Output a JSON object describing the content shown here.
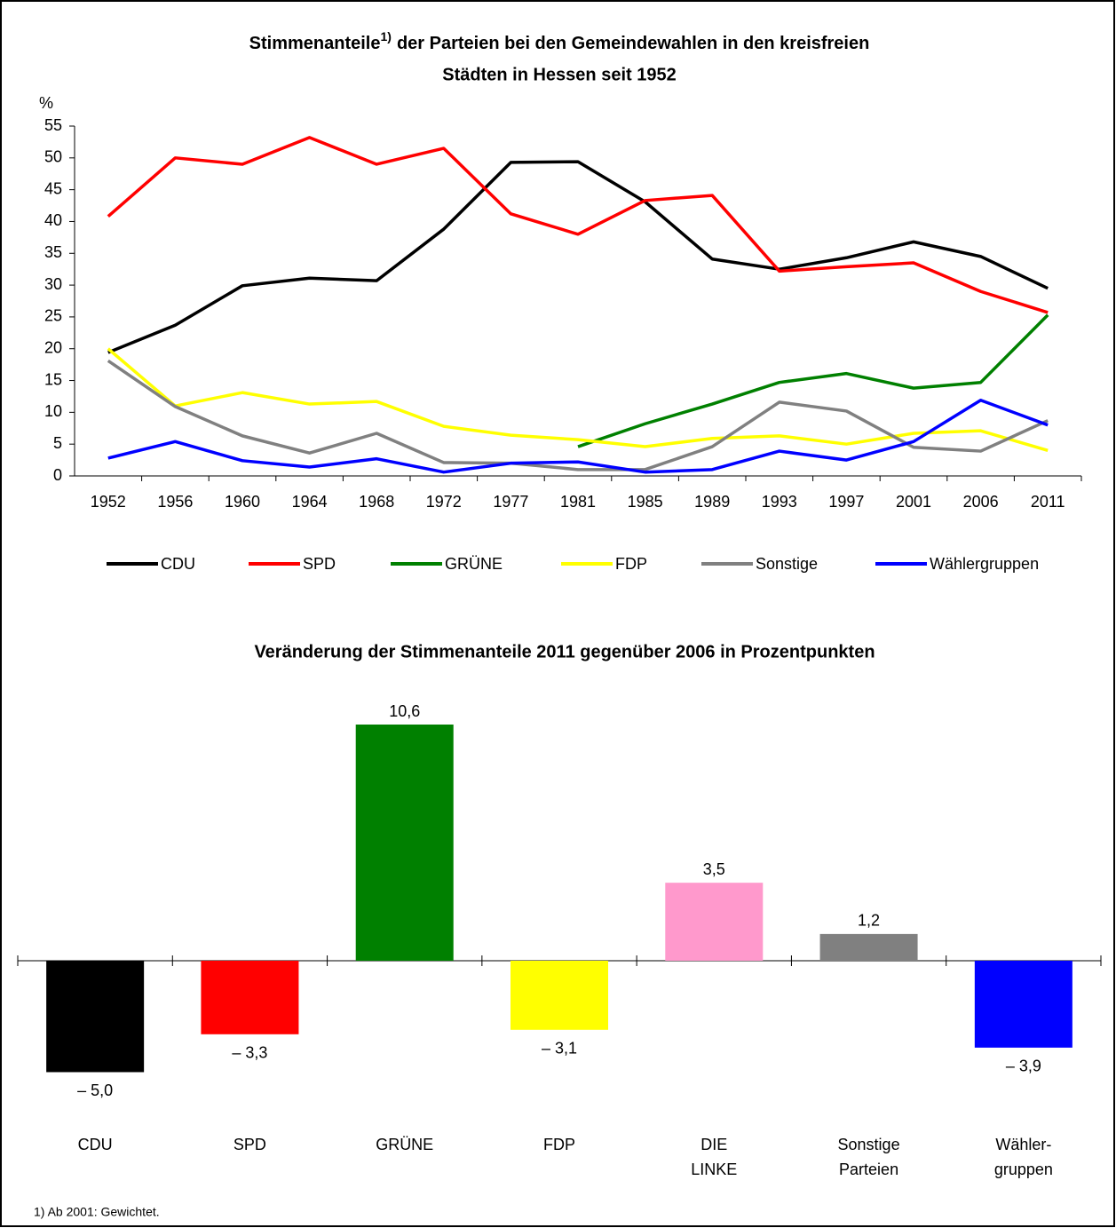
{
  "chart_data": [
    {
      "type": "line",
      "title": "Stimmenanteile",
      "title_note": "1)",
      "title_rest": "der Parteien bei den Gemeindewahlen in den kreisfreien",
      "title_line2": "Städten in Hessen seit 1952",
      "ylabel": "%",
      "categories": [
        "1952",
        "1956",
        "1960",
        "1964",
        "1968",
        "1972",
        "1977",
        "1981",
        "1985",
        "1989",
        "1993",
        "1997",
        "2001",
        "2006",
        "2011"
      ],
      "ylim": [
        0,
        55
      ],
      "yticks": [
        0,
        5,
        10,
        15,
        20,
        25,
        30,
        35,
        40,
        45,
        50,
        55
      ],
      "series": [
        {
          "name": "CDU",
          "color": "#000000",
          "values": [
            19.4,
            23.7,
            29.9,
            31.1,
            30.7,
            38.8,
            49.3,
            49.4,
            43.1,
            34.1,
            32.5,
            34.3,
            36.8,
            34.5,
            29.5
          ]
        },
        {
          "name": "SPD",
          "color": "#ff0000",
          "values": [
            40.8,
            50.0,
            49.0,
            53.2,
            49.0,
            51.5,
            41.2,
            38.0,
            43.3,
            44.1,
            32.2,
            32.9,
            33.5,
            29.0,
            25.7
          ]
        },
        {
          "name": "GRÜNE",
          "color": "#008000",
          "values": [
            null,
            null,
            null,
            null,
            null,
            null,
            null,
            4.6,
            8.2,
            11.3,
            14.7,
            16.1,
            13.8,
            14.7,
            25.3
          ]
        },
        {
          "name": "FDP",
          "color": "#ffff00",
          "values": [
            20.0,
            11.0,
            13.1,
            11.3,
            11.7,
            7.8,
            6.4,
            5.7,
            4.6,
            5.9,
            6.3,
            5.0,
            6.7,
            7.1,
            4.0
          ]
        },
        {
          "name": "Sonstige",
          "color": "#808080",
          "values": [
            18.1,
            10.9,
            6.3,
            3.6,
            6.7,
            2.1,
            2.0,
            1.0,
            1.0,
            4.6,
            11.6,
            10.2,
            4.5,
            3.9,
            8.7
          ]
        },
        {
          "name": "Wählergruppen",
          "color": "#0000ff",
          "values": [
            2.8,
            5.4,
            2.4,
            1.4,
            2.7,
            0.6,
            2.0,
            2.2,
            0.6,
            1.0,
            3.9,
            2.5,
            5.4,
            11.9,
            8.0
          ]
        }
      ]
    },
    {
      "type": "bar",
      "title": "Veränderung der Stimmenanteile 2011 gegenüber 2006 in Prozentpunkten",
      "categories": [
        "CDU",
        "SPD",
        "GRÜNE",
        "FDP",
        "DIE\nLINKE",
        "Sonstige\nParteien",
        "Wähler-\ngruppen"
      ],
      "values": [
        -5.0,
        -3.3,
        10.6,
        -3.1,
        3.5,
        1.2,
        -3.9
      ],
      "value_labels": [
        "– 5,0",
        "– 3,3",
        "10,6",
        "– 3,1",
        "3,5",
        "1,2",
        "– 3,9"
      ],
      "colors": [
        "#000000",
        "#ff0000",
        "#008000",
        "#ffff00",
        "#ff99cc",
        "#808080",
        "#0000ff"
      ]
    }
  ],
  "footnote": "1) Ab 2001: Gewichtet."
}
